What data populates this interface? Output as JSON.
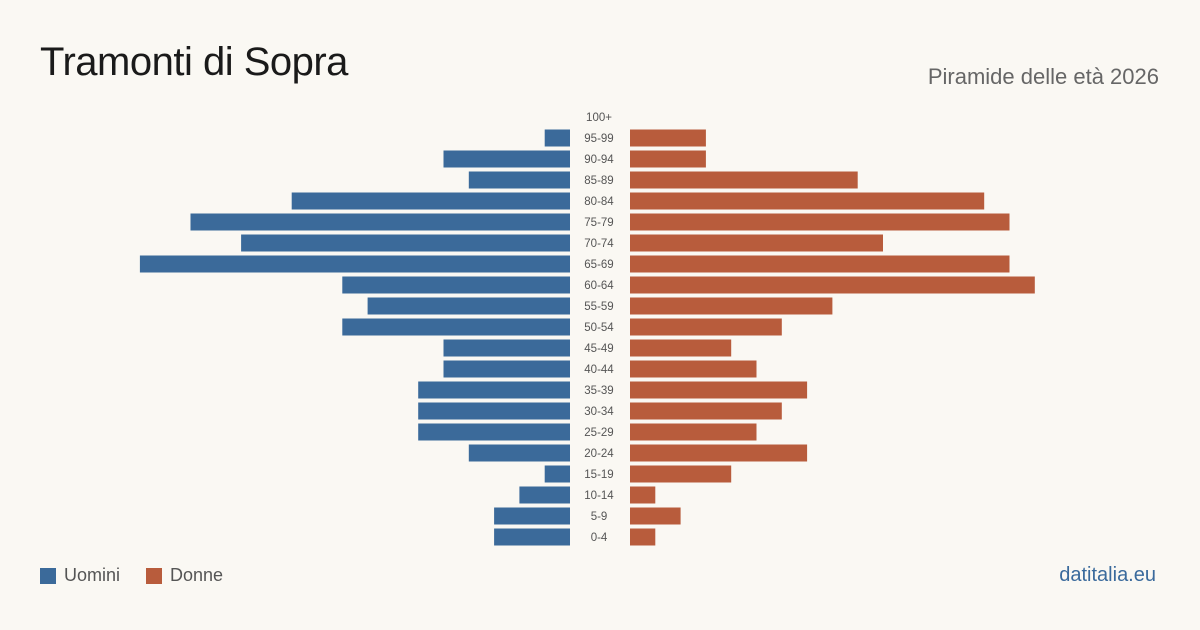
{
  "title": "Tramonti di Sopra",
  "subtitle": "Piramide delle età 2026",
  "source": "datitalia.eu",
  "colors": {
    "men": "#3b6a9a",
    "women": "#b85c3c",
    "age_label": "#555555"
  },
  "chart_data": {
    "type": "bar",
    "orientation": "population-pyramid",
    "categories": [
      "100+",
      "95-99",
      "90-94",
      "85-89",
      "80-84",
      "75-79",
      "70-74",
      "65-69",
      "60-64",
      "55-59",
      "50-54",
      "45-49",
      "40-44",
      "35-39",
      "30-34",
      "25-29",
      "20-24",
      "15-19",
      "10-14",
      "5-9",
      "0-4"
    ],
    "series": [
      {
        "name": "Uomini",
        "values": [
          0,
          1,
          5,
          4,
          11,
          15,
          13,
          17,
          9,
          8,
          9,
          5,
          5,
          6,
          6,
          6,
          4,
          1,
          2,
          3,
          3
        ]
      },
      {
        "name": "Donne",
        "values": [
          0,
          3,
          3,
          9,
          14,
          15,
          10,
          15,
          16,
          8,
          6,
          4,
          5,
          7,
          6,
          5,
          7,
          4,
          1,
          2,
          1
        ]
      }
    ],
    "xlim": [
      0,
      17
    ]
  }
}
